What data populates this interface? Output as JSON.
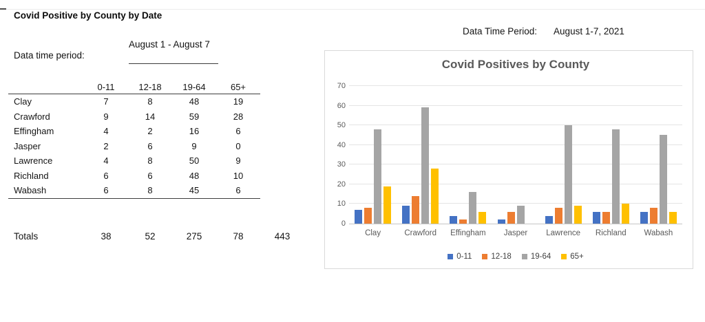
{
  "sheet": {
    "title": "Covid Positive by County by Date",
    "period_label": "Data time period:",
    "period_value": "August 1 - August 7"
  },
  "left_table": {
    "columns": [
      "0-11",
      "12-18",
      "19-64",
      "65+"
    ],
    "rows": [
      {
        "county": "Clay",
        "values": [
          7,
          8,
          48,
          19
        ]
      },
      {
        "county": "Crawford",
        "values": [
          9,
          14,
          59,
          28
        ]
      },
      {
        "county": "Effingham",
        "values": [
          4,
          2,
          16,
          6
        ]
      },
      {
        "county": "Jasper",
        "values": [
          2,
          6,
          9,
          0
        ]
      },
      {
        "county": "Lawrence",
        "values": [
          4,
          8,
          50,
          9
        ]
      },
      {
        "county": "Richland",
        "values": [
          6,
          6,
          48,
          10
        ]
      },
      {
        "county": "Wabash",
        "values": [
          6,
          8,
          45,
          6
        ]
      }
    ],
    "totals_label": "Totals",
    "totals": [
      38,
      52,
      275,
      78
    ],
    "grand_total": 443
  },
  "chart_header": {
    "period_label": "Data Time Period:",
    "period_value": "August 1-7, 2021"
  },
  "chart_data": {
    "type": "bar",
    "title": "Covid Positives by County",
    "categories": [
      "Clay",
      "Crawford",
      "Effingham",
      "Jasper",
      "Lawrence",
      "Richland",
      "Wabash"
    ],
    "series": [
      {
        "name": "0-11",
        "color": "#4472C4",
        "values": [
          7,
          9,
          4,
          2,
          4,
          6,
          6
        ]
      },
      {
        "name": "12-18",
        "color": "#ED7D31",
        "values": [
          8,
          14,
          2,
          6,
          8,
          6,
          8
        ]
      },
      {
        "name": "19-64",
        "color": "#A5A5A5",
        "values": [
          48,
          59,
          16,
          9,
          50,
          48,
          45
        ]
      },
      {
        "name": "65+",
        "color": "#FFC000",
        "values": [
          19,
          28,
          6,
          0,
          9,
          10,
          6
        ]
      }
    ],
    "ylim": [
      0,
      70
    ],
    "yticks": [
      0,
      10,
      20,
      30,
      40,
      50,
      60,
      70
    ],
    "grid": true,
    "legend_position": "bottom"
  }
}
